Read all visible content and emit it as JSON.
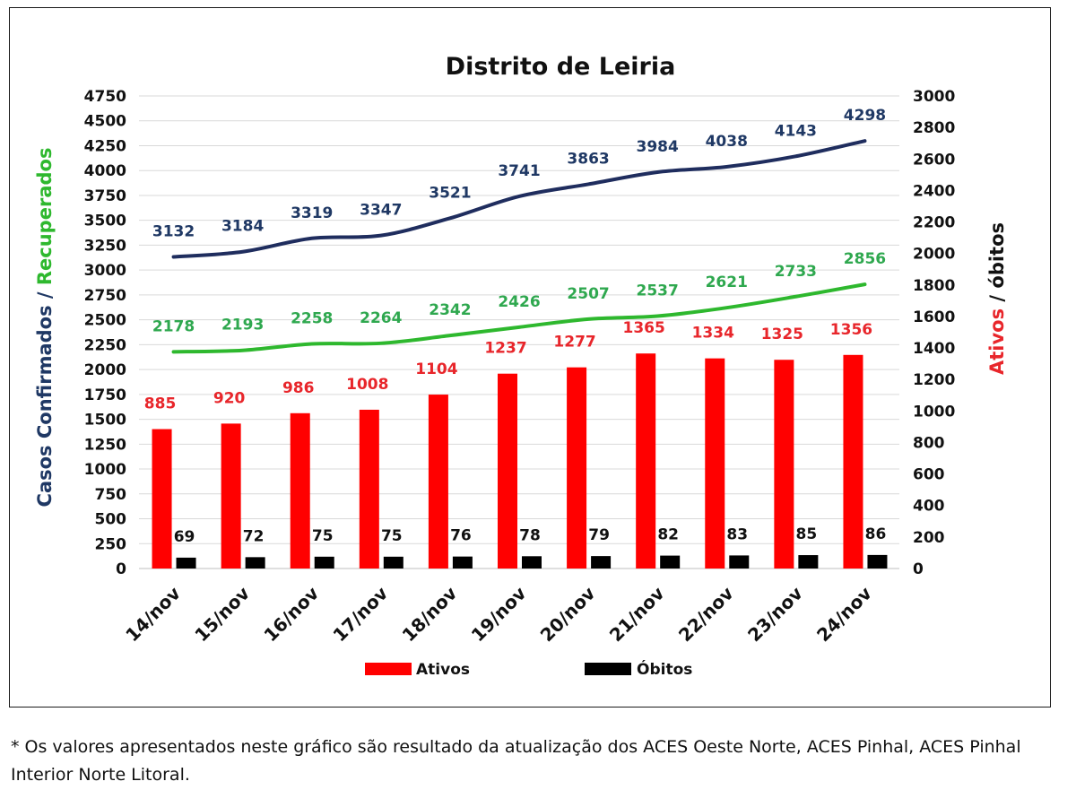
{
  "chart_data": {
    "type": "bar",
    "title": "Distrito de Leiria",
    "categories": [
      "14/nov",
      "15/nov",
      "16/nov",
      "17/nov",
      "18/nov",
      "19/nov",
      "20/nov",
      "21/nov",
      "22/nov",
      "23/nov",
      "24/nov"
    ],
    "left_axis": {
      "label_part1": "Casos Confirmados / ",
      "label_part2": "Recuperados",
      "ylim": [
        0,
        4750
      ],
      "ticks": [
        "0",
        "250",
        "500",
        "750",
        "1000",
        "1250",
        "1500",
        "1750",
        "2000",
        "2250",
        "2500",
        "2750",
        "3000",
        "3250",
        "3500",
        "3750",
        "4000",
        "4250",
        "4500",
        "4750"
      ]
    },
    "right_axis": {
      "label_part1": "Ativos",
      "label_part2": " / óbitos",
      "ylim": [
        0,
        3000
      ],
      "ticks": [
        "0",
        "200",
        "400",
        "600",
        "800",
        "1000",
        "1200",
        "1400",
        "1600",
        "1800",
        "2000",
        "2200",
        "2400",
        "2600",
        "2800",
        "3000"
      ]
    },
    "line_series": [
      {
        "name": "Casos Confirmados",
        "axis": "left",
        "color": "#1f2d5e",
        "label_color": "#1f3864",
        "values": [
          3132,
          3184,
          3319,
          3347,
          3521,
          3741,
          3863,
          3984,
          4038,
          4143,
          4298
        ]
      },
      {
        "name": "Recuperados",
        "axis": "left",
        "color": "#2eb82e",
        "label_color": "#2fa84f",
        "values": [
          2178,
          2193,
          2258,
          2264,
          2342,
          2426,
          2507,
          2537,
          2621,
          2733,
          2856
        ]
      }
    ],
    "bar_series": [
      {
        "name": "Ativos",
        "axis": "right",
        "color": "#ff0000",
        "label_color": "#e8262b",
        "values": [
          885,
          920,
          986,
          1008,
          1104,
          1237,
          1277,
          1365,
          1334,
          1325,
          1356
        ]
      },
      {
        "name": "Óbitos",
        "axis": "right",
        "color": "#000000",
        "label_color": "#111111",
        "values": [
          69,
          72,
          75,
          75,
          76,
          78,
          79,
          82,
          83,
          85,
          86
        ]
      }
    ],
    "legend": {
      "position": "bottom",
      "items": [
        "Ativos",
        "Óbitos"
      ]
    },
    "grid": true,
    "colors": {
      "left_label": "#1f3864",
      "recuperados_label": "#2eb82e",
      "right_label": "#e8262b"
    }
  },
  "footnote": "* Os valores apresentados neste gráfico são resultado da atualização dos ACES Oeste Norte, ACES Pinhal, ACES Pinhal Interior Norte Litoral."
}
